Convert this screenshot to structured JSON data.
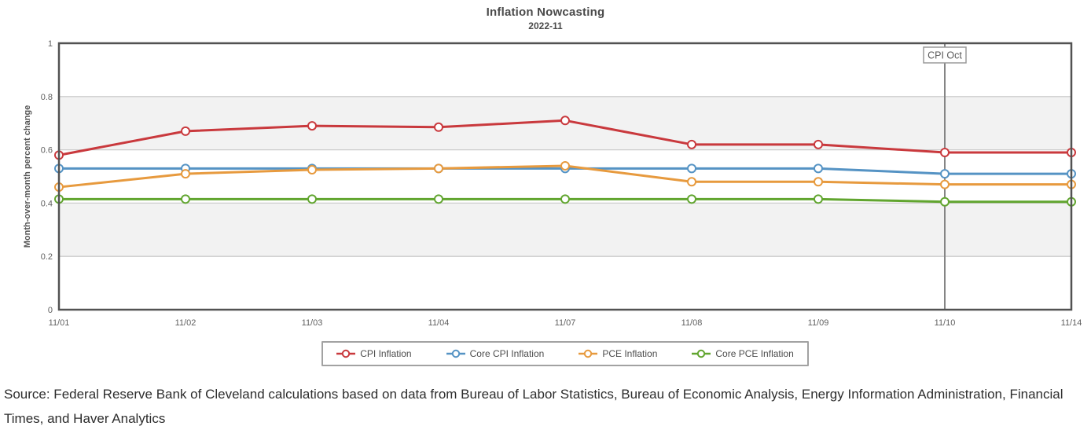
{
  "chart_data": {
    "type": "line",
    "title": "Inflation Nowcasting",
    "subtitle": "2022-11",
    "ylabel": "Month-over-month percent change",
    "xlabel": "",
    "ylim": [
      0,
      1
    ],
    "yticks": [
      0,
      0.2,
      0.4,
      0.6,
      0.8,
      1
    ],
    "ytick_labels": [
      "0",
      "0.2",
      "0.4",
      "0.6",
      "0.8",
      "1"
    ],
    "categories": [
      "11/01",
      "11/02",
      "11/03",
      "11/04",
      "11/07",
      "11/08",
      "11/09",
      "11/10",
      "11/14"
    ],
    "series": [
      {
        "name": "CPI Inflation",
        "color": "#c9393d",
        "values": [
          0.58,
          0.67,
          0.69,
          0.685,
          0.71,
          0.62,
          0.62,
          0.59,
          0.59
        ]
      },
      {
        "name": "Core CPI Inflation",
        "color": "#5593c4",
        "values": [
          0.53,
          0.53,
          0.53,
          0.53,
          0.53,
          0.53,
          0.53,
          0.51,
          0.51
        ]
      },
      {
        "name": "PCE Inflation",
        "color": "#e79a3e",
        "values": [
          0.46,
          0.51,
          0.525,
          0.53,
          0.54,
          0.48,
          0.48,
          0.47,
          0.47
        ]
      },
      {
        "name": "Core PCE Inflation",
        "color": "#61a52f",
        "values": [
          0.415,
          0.415,
          0.415,
          0.415,
          0.415,
          0.415,
          0.415,
          0.405,
          0.405
        ]
      }
    ],
    "annotation": {
      "label": "CPI Oct",
      "category": "11/10"
    },
    "legend_position": "bottom",
    "grid": true,
    "style": {
      "band_fill": "#f2f2f2",
      "grid_color": "#cccccc",
      "frame_color": "#525252",
      "event_line_color": "#858585",
      "marker_fill": "#ffffff"
    }
  },
  "source_note": "Source: Federal Reserve Bank of Cleveland calculations based on data from Bureau of Labor Statistics, Bureau of Economic Analysis, Energy Information Administration, Financial Times, and Haver Analytics"
}
